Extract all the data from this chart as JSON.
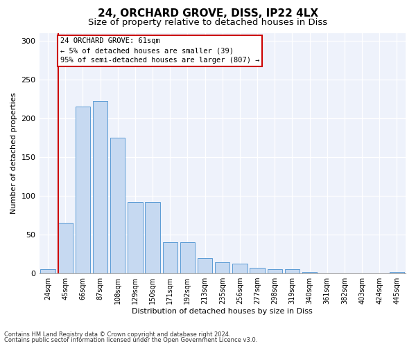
{
  "title1": "24, ORCHARD GROVE, DISS, IP22 4LX",
  "title2": "Size of property relative to detached houses in Diss",
  "xlabel": "Distribution of detached houses by size in Diss",
  "ylabel": "Number of detached properties",
  "footnote1": "Contains HM Land Registry data © Crown copyright and database right 2024.",
  "footnote2": "Contains public sector information licensed under the Open Government Licence v3.0.",
  "annotation_line1": "24 ORCHARD GROVE: 61sqm",
  "annotation_line2": "← 5% of detached houses are smaller (39)",
  "annotation_line3": "95% of semi-detached houses are larger (807) →",
  "bar_labels": [
    "24sqm",
    "45sqm",
    "66sqm",
    "87sqm",
    "108sqm",
    "129sqm",
    "150sqm",
    "171sqm",
    "192sqm",
    "213sqm",
    "235sqm",
    "256sqm",
    "277sqm",
    "298sqm",
    "319sqm",
    "340sqm",
    "361sqm",
    "382sqm",
    "403sqm",
    "424sqm",
    "445sqm"
  ],
  "bar_values": [
    5,
    65,
    215,
    222,
    175,
    92,
    92,
    40,
    40,
    20,
    14,
    13,
    7,
    5,
    5,
    2,
    0,
    0,
    0,
    0,
    2
  ],
  "bar_color": "#c6d9f1",
  "bar_edge_color": "#5b9bd5",
  "vline_color": "#cc0000",
  "box_color": "#cc0000",
  "ylim": [
    0,
    310
  ],
  "yticks": [
    0,
    50,
    100,
    150,
    200,
    250,
    300
  ],
  "bg_color": "#eef2fb",
  "title_fontsize": 11,
  "subtitle_fontsize": 9.5,
  "tick_fontsize": 7,
  "axis_label_fontsize": 8
}
